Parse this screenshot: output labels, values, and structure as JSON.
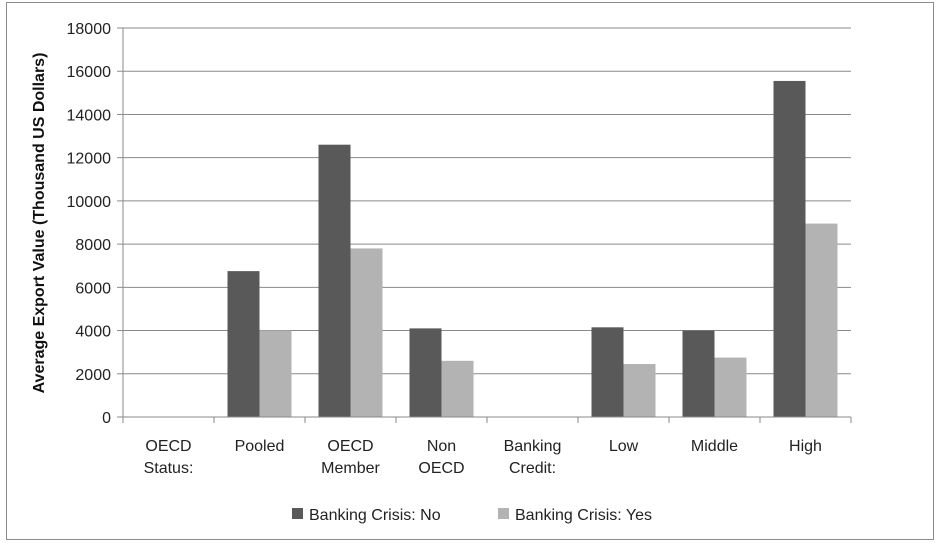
{
  "chart_data": {
    "type": "bar",
    "categories": [
      [
        "OECD",
        "Status:"
      ],
      [
        "Pooled"
      ],
      [
        "OECD",
        "Member"
      ],
      [
        "Non",
        "OECD"
      ],
      [
        "Banking",
        "Credit:"
      ],
      [
        "Low"
      ],
      [
        "Middle"
      ],
      [
        "High"
      ]
    ],
    "series": [
      {
        "name": "Banking Crisis: No",
        "color": "#595959",
        "values": [
          null,
          6750,
          12600,
          4100,
          null,
          4150,
          4000,
          15550
        ]
      },
      {
        "name": "Banking Crisis: Yes",
        "color": "#b3b3b3",
        "values": [
          null,
          4000,
          7800,
          2600,
          null,
          2450,
          2750,
          8950
        ]
      }
    ],
    "ylabel": "Average Export Value (Thousand US Dollars)",
    "ylim": [
      0,
      18000
    ],
    "yticks": [
      "0",
      "2000",
      "4000",
      "6000",
      "8000",
      "10000",
      "12000",
      "14000",
      "16000",
      "18000"
    ],
    "grid": true,
    "legend_position": "bottom"
  }
}
